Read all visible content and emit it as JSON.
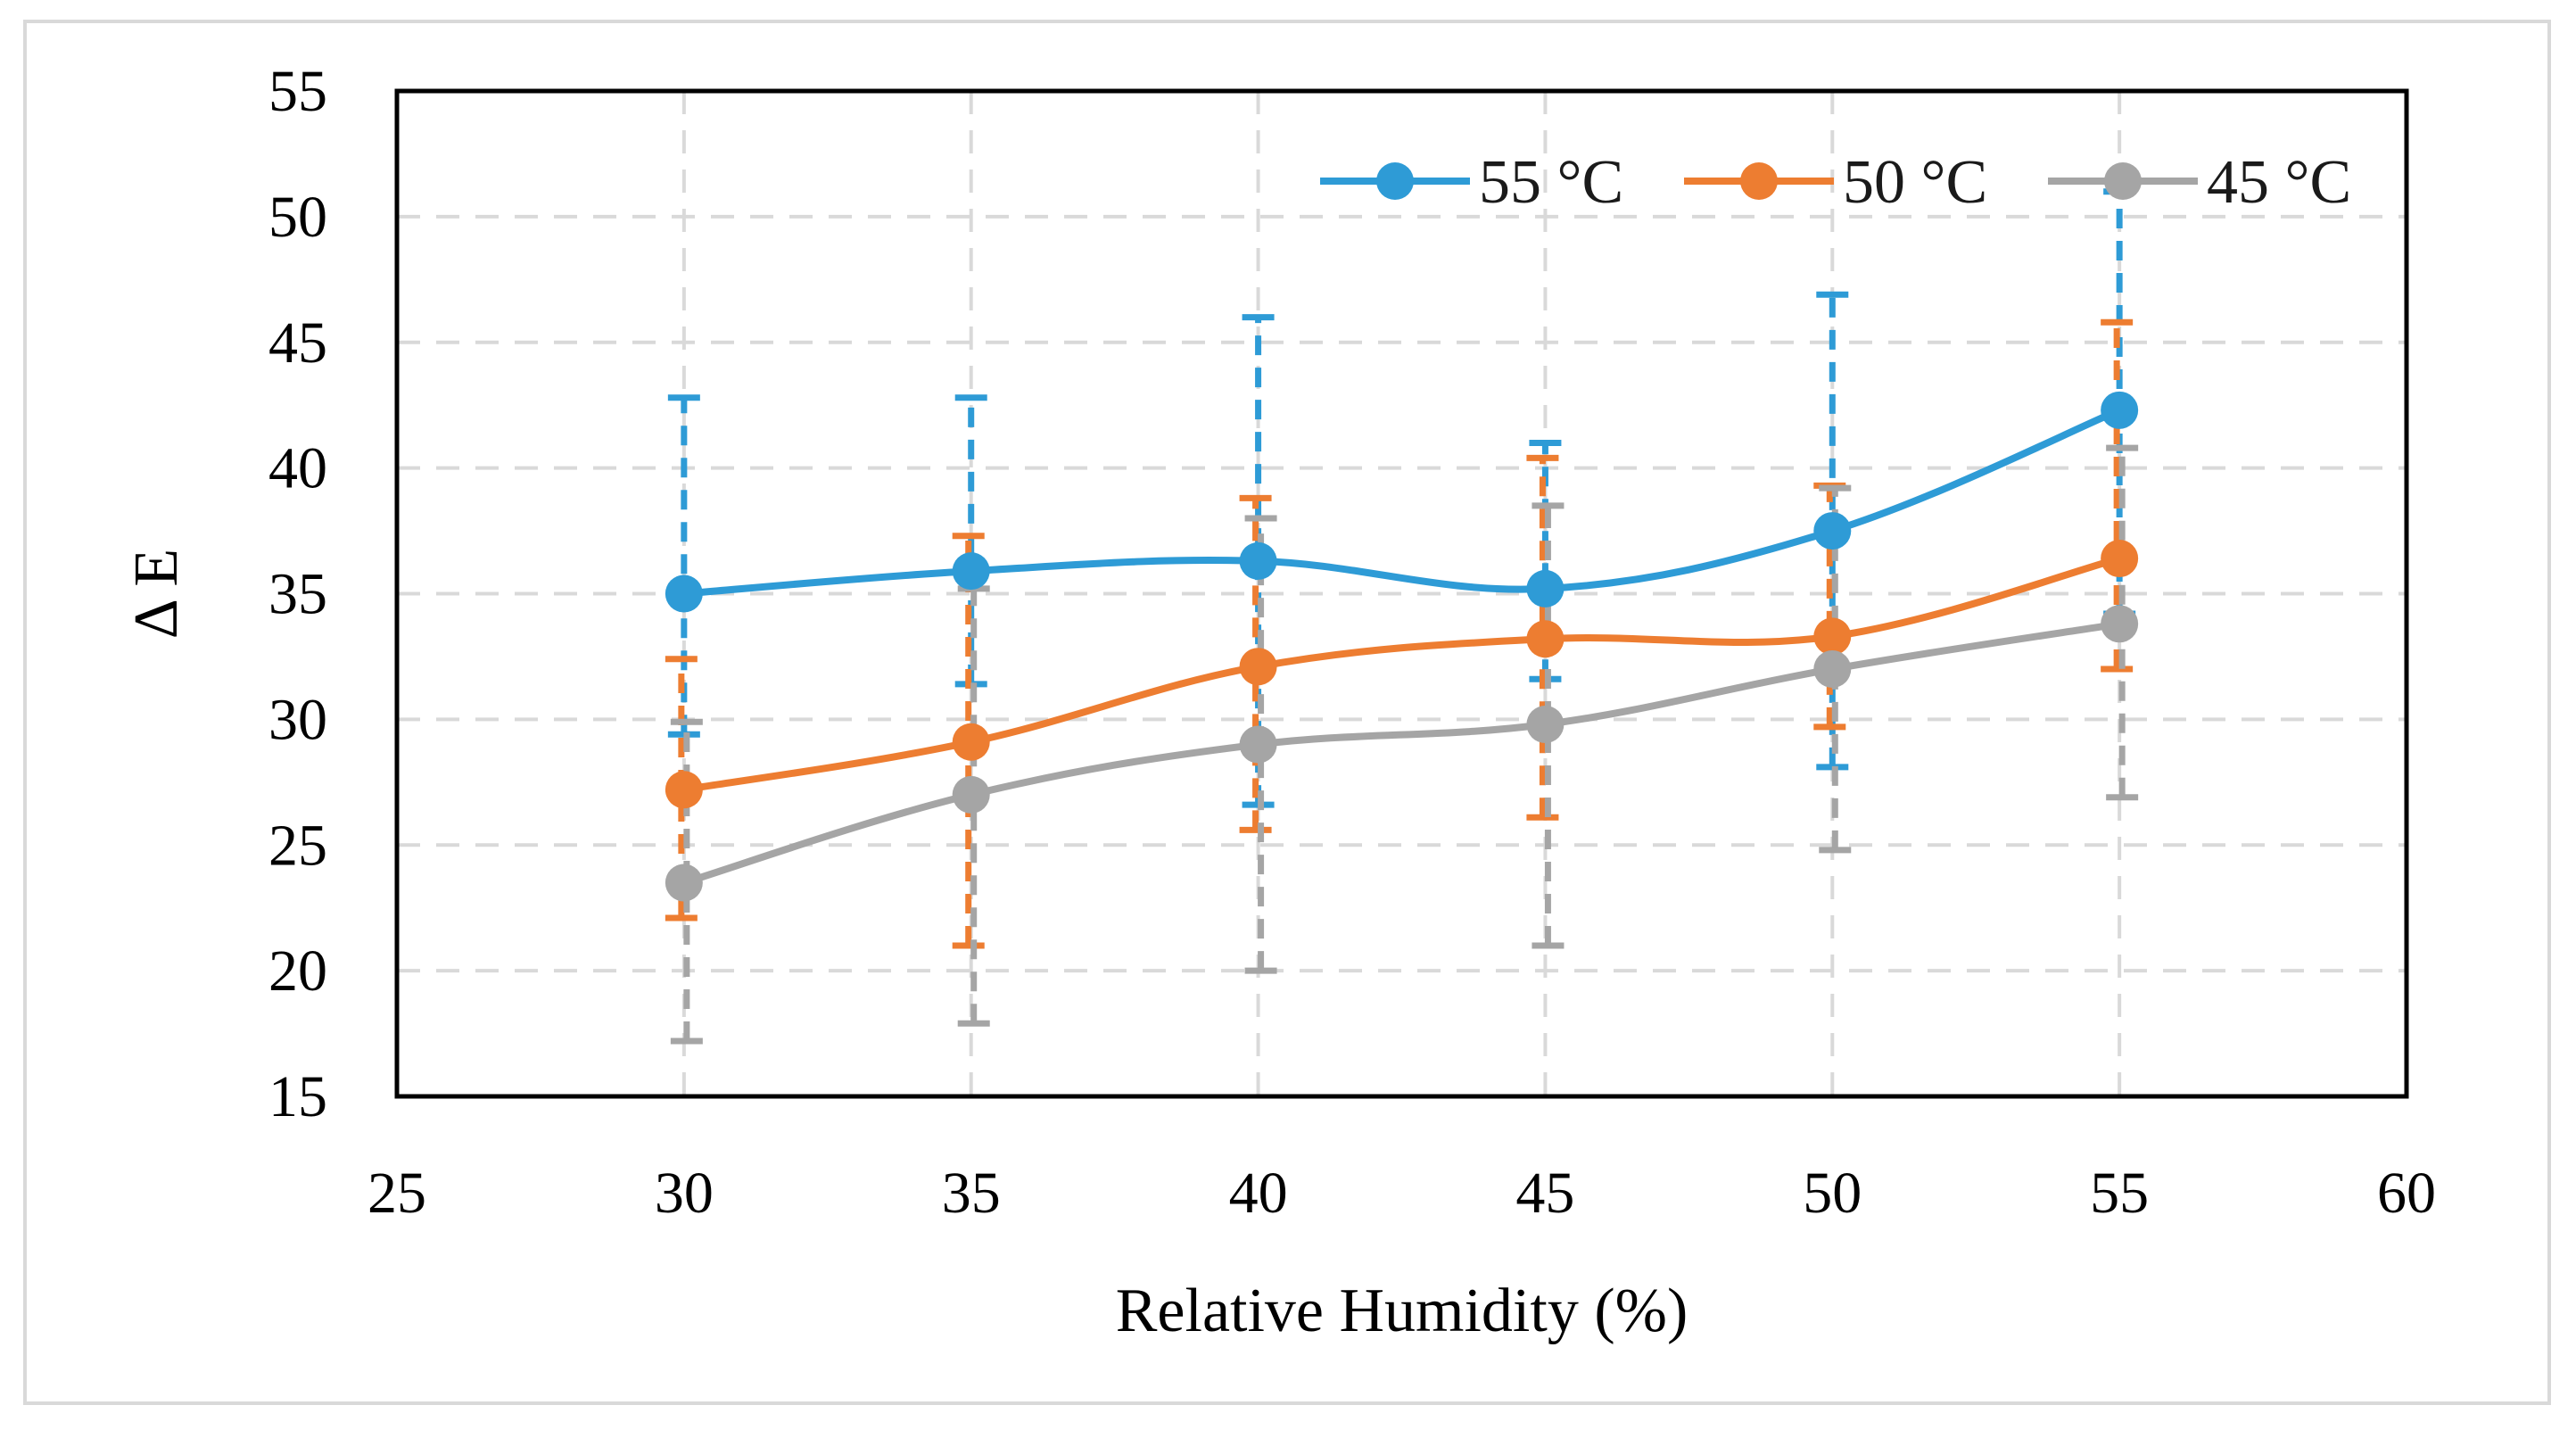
{
  "chart_data": {
    "type": "line",
    "xlabel": "Relative Humidity (%)",
    "ylabel": "Δ E",
    "xlim": [
      25,
      60
    ],
    "ylim": [
      15,
      55
    ],
    "xticks": [
      25,
      30,
      35,
      40,
      45,
      50,
      55,
      60
    ],
    "yticks": [
      15,
      20,
      25,
      30,
      35,
      40,
      45,
      50,
      55
    ],
    "x": [
      30,
      35,
      40,
      45,
      50,
      55
    ],
    "grid": true,
    "legend_position": "top-right",
    "series": [
      {
        "name": "55 °C",
        "color": "#2e9bd6",
        "values": [
          35.0,
          35.9,
          36.3,
          35.2,
          37.5,
          42.3
        ],
        "error_low": [
          29.4,
          31.4,
          26.6,
          31.6,
          28.1,
          34.2
        ],
        "error_high": [
          42.8,
          42.8,
          46.0,
          41.0,
          46.9,
          51.0
        ]
      },
      {
        "name": "50 °C",
        "color": "#ed7d31",
        "values": [
          27.2,
          29.1,
          32.1,
          33.2,
          33.3,
          36.4
        ],
        "error_low": [
          22.1,
          21.0,
          25.6,
          26.1,
          29.7,
          32.0
        ],
        "error_high": [
          32.4,
          37.3,
          38.8,
          40.4,
          39.3,
          45.8
        ]
      },
      {
        "name": "45 °C",
        "color": "#a5a5a5",
        "values": [
          23.5,
          27.0,
          29.0,
          29.8,
          32.0,
          33.8
        ],
        "error_low": [
          17.2,
          17.9,
          20.0,
          21.0,
          24.8,
          26.9
        ],
        "error_high": [
          29.9,
          35.2,
          38.0,
          38.5,
          39.2,
          40.8
        ]
      }
    ]
  }
}
